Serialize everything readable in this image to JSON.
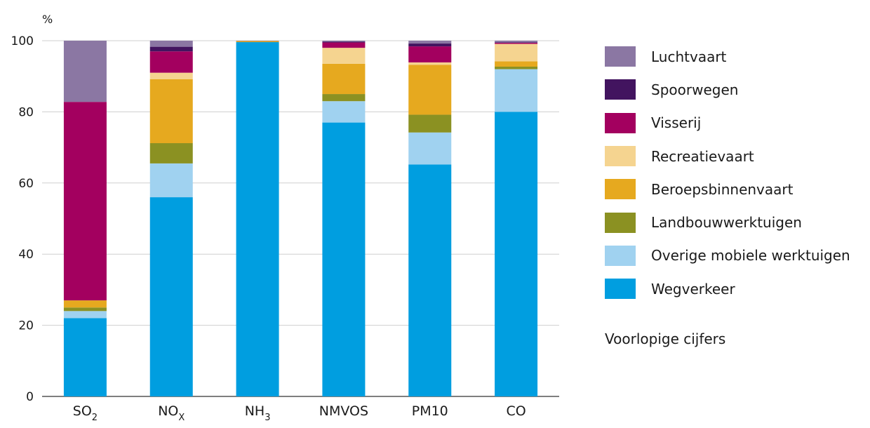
{
  "chart_data": {
    "type": "bar",
    "stacked": true,
    "y_unit_label": "%",
    "ylim": [
      0,
      100
    ],
    "y_ticks": [
      "0",
      "20",
      "40",
      "60",
      "80",
      "100"
    ],
    "grid": true,
    "legend_position": "right",
    "categories": [
      {
        "base": "SO",
        "sub": "2"
      },
      {
        "base": "NO",
        "sub": "X"
      },
      {
        "base": "NH",
        "sub": "3"
      },
      {
        "base": "NMVOS",
        "sub": ""
      },
      {
        "base": "PM10",
        "sub": ""
      },
      {
        "base": "CO",
        "sub": ""
      }
    ],
    "series": [
      {
        "name": "Wegverkeer",
        "color": "#009ee0",
        "values": [
          22,
          56,
          99.6,
          77,
          65.2,
          80
        ]
      },
      {
        "name": "Overige mobiele werktuigen",
        "color": "#a0d2f0",
        "values": [
          2,
          9.5,
          0,
          6,
          9,
          12
        ]
      },
      {
        "name": "Landbouwwerktuigen",
        "color": "#8b9122",
        "values": [
          1,
          5.7,
          0,
          2,
          5,
          0.7
        ]
      },
      {
        "name": "Beroepsbinnenvaart",
        "color": "#e6a91f",
        "values": [
          2,
          18,
          0.3,
          8.5,
          14,
          1.5
        ]
      },
      {
        "name": "Recreatievaart",
        "color": "#f5d490",
        "values": [
          0,
          1.8,
          0,
          4.5,
          0.7,
          4.9
        ]
      },
      {
        "name": "Visserij",
        "color": "#a3005f",
        "values": [
          55.8,
          6,
          0,
          1.5,
          4.5,
          0.3
        ]
      },
      {
        "name": "Spoorwegen",
        "color": "#42145f",
        "values": [
          0,
          1.3,
          0,
          0.2,
          0.8,
          0.1
        ]
      },
      {
        "name": "Luchtvaart",
        "color": "#8b77a3",
        "values": [
          17.2,
          1.7,
          0.1,
          0.3,
          0.8,
          0.5
        ]
      }
    ],
    "note": "Voorlopige cijfers"
  }
}
